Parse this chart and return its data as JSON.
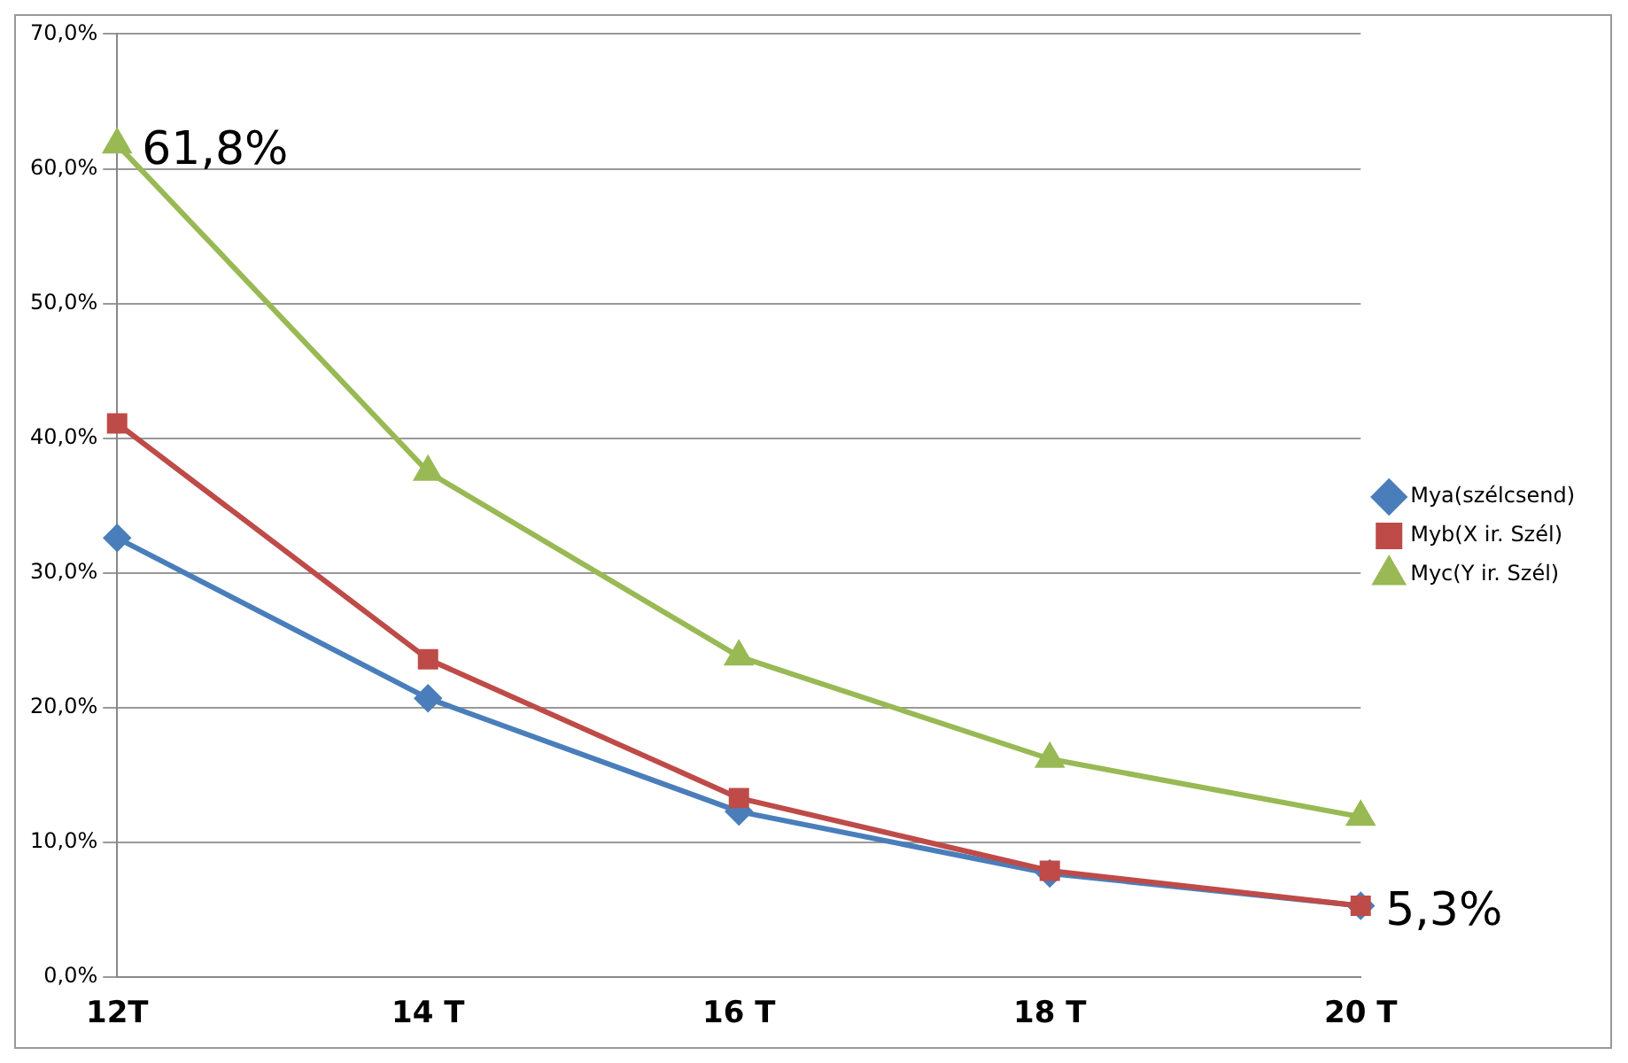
{
  "chart_data": {
    "type": "line",
    "categories": [
      "12T",
      "14 T",
      "16 T",
      "18 T",
      "20 T"
    ],
    "series": [
      {
        "name": "Mya(szélcsend)",
        "color": "#4a7ebb",
        "marker": "diamond",
        "values": [
          32.6,
          20.7,
          12.3,
          7.7,
          5.3
        ]
      },
      {
        "name": "Myb(X ir. Szél)",
        "color": "#be4b48",
        "marker": "square",
        "values": [
          41.1,
          23.6,
          13.3,
          7.9,
          5.3
        ],
        "value_labels": [
          null,
          null,
          null,
          null,
          "5,3%"
        ]
      },
      {
        "name": "Myc(Y ir. Szél)",
        "color": "#98b954",
        "marker": "triangle",
        "values": [
          61.8,
          37.5,
          23.8,
          16.2,
          11.9
        ],
        "value_labels": [
          "61,8%",
          null,
          null,
          null,
          null
        ]
      }
    ],
    "ylim": [
      0,
      70
    ],
    "yticks": [
      {
        "value": 0,
        "label": "0,0%"
      },
      {
        "value": 10,
        "label": "10,0%"
      },
      {
        "value": 20,
        "label": "20,0%"
      },
      {
        "value": 30,
        "label": "30,0%"
      },
      {
        "value": 40,
        "label": "40,0%"
      },
      {
        "value": 50,
        "label": "50,0%"
      },
      {
        "value": 60,
        "label": "60,0%"
      },
      {
        "value": 70,
        "label": "70,0%"
      }
    ],
    "grid": "y",
    "legend": "right"
  }
}
